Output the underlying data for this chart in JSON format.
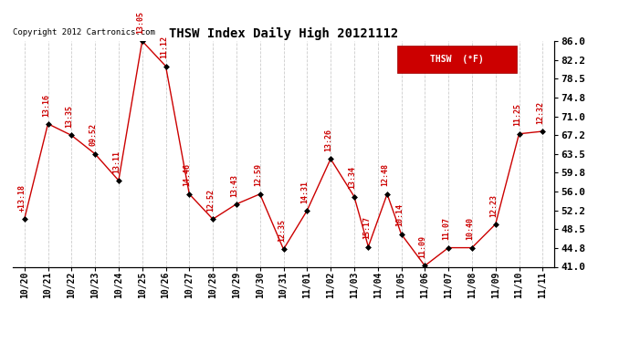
{
  "title": "THSW Index Daily High 20121112",
  "copyright": "Copyright 2012 Cartronics.com",
  "legend_label": "THSW  (°F)",
  "ylim": [
    41.0,
    86.0
  ],
  "yticks": [
    41.0,
    44.8,
    48.5,
    52.2,
    56.0,
    59.8,
    63.5,
    67.2,
    71.0,
    74.8,
    78.5,
    82.2,
    86.0
  ],
  "background_color": "#ffffff",
  "grid_color": "#cccccc",
  "line_color": "#cc0000",
  "marker_color": "#000000",
  "label_color": "#cc0000",
  "date_labels": [
    "10/20",
    "10/21",
    "10/22",
    "10/23",
    "10/24",
    "10/25",
    "10/26",
    "10/27",
    "10/28",
    "10/29",
    "10/30",
    "10/31",
    "11/01",
    "11/02",
    "11/03",
    "11/04",
    "11/05",
    "11/06",
    "11/07",
    "11/08",
    "11/09",
    "11/10",
    "11/11"
  ],
  "x_plot": [
    0,
    1,
    2,
    3,
    4,
    5,
    6,
    7,
    8,
    9,
    10,
    11,
    12,
    13,
    14,
    14.6,
    15.4,
    16,
    17,
    18,
    19,
    20,
    21,
    22
  ],
  "y_values": [
    50.5,
    69.5,
    67.2,
    63.5,
    58.2,
    86.0,
    81.0,
    55.5,
    50.5,
    53.5,
    55.5,
    44.5,
    52.2,
    62.5,
    55.0,
    45.0,
    55.5,
    47.5,
    41.2,
    44.8,
    44.8,
    49.5,
    67.5,
    68.0
  ],
  "time_labels": [
    "+13:18",
    "13:16",
    "13:35",
    "09:52",
    "13:11",
    "13:05",
    "11:12",
    "14:46",
    "12:52",
    "13:43",
    "12:59",
    "12:35",
    "14:31",
    "13:26",
    "13:34",
    "15:17",
    "12:48",
    "10:14",
    "11:09",
    "11:07",
    "10:40",
    "12:23",
    "11:25",
    "12:32"
  ]
}
